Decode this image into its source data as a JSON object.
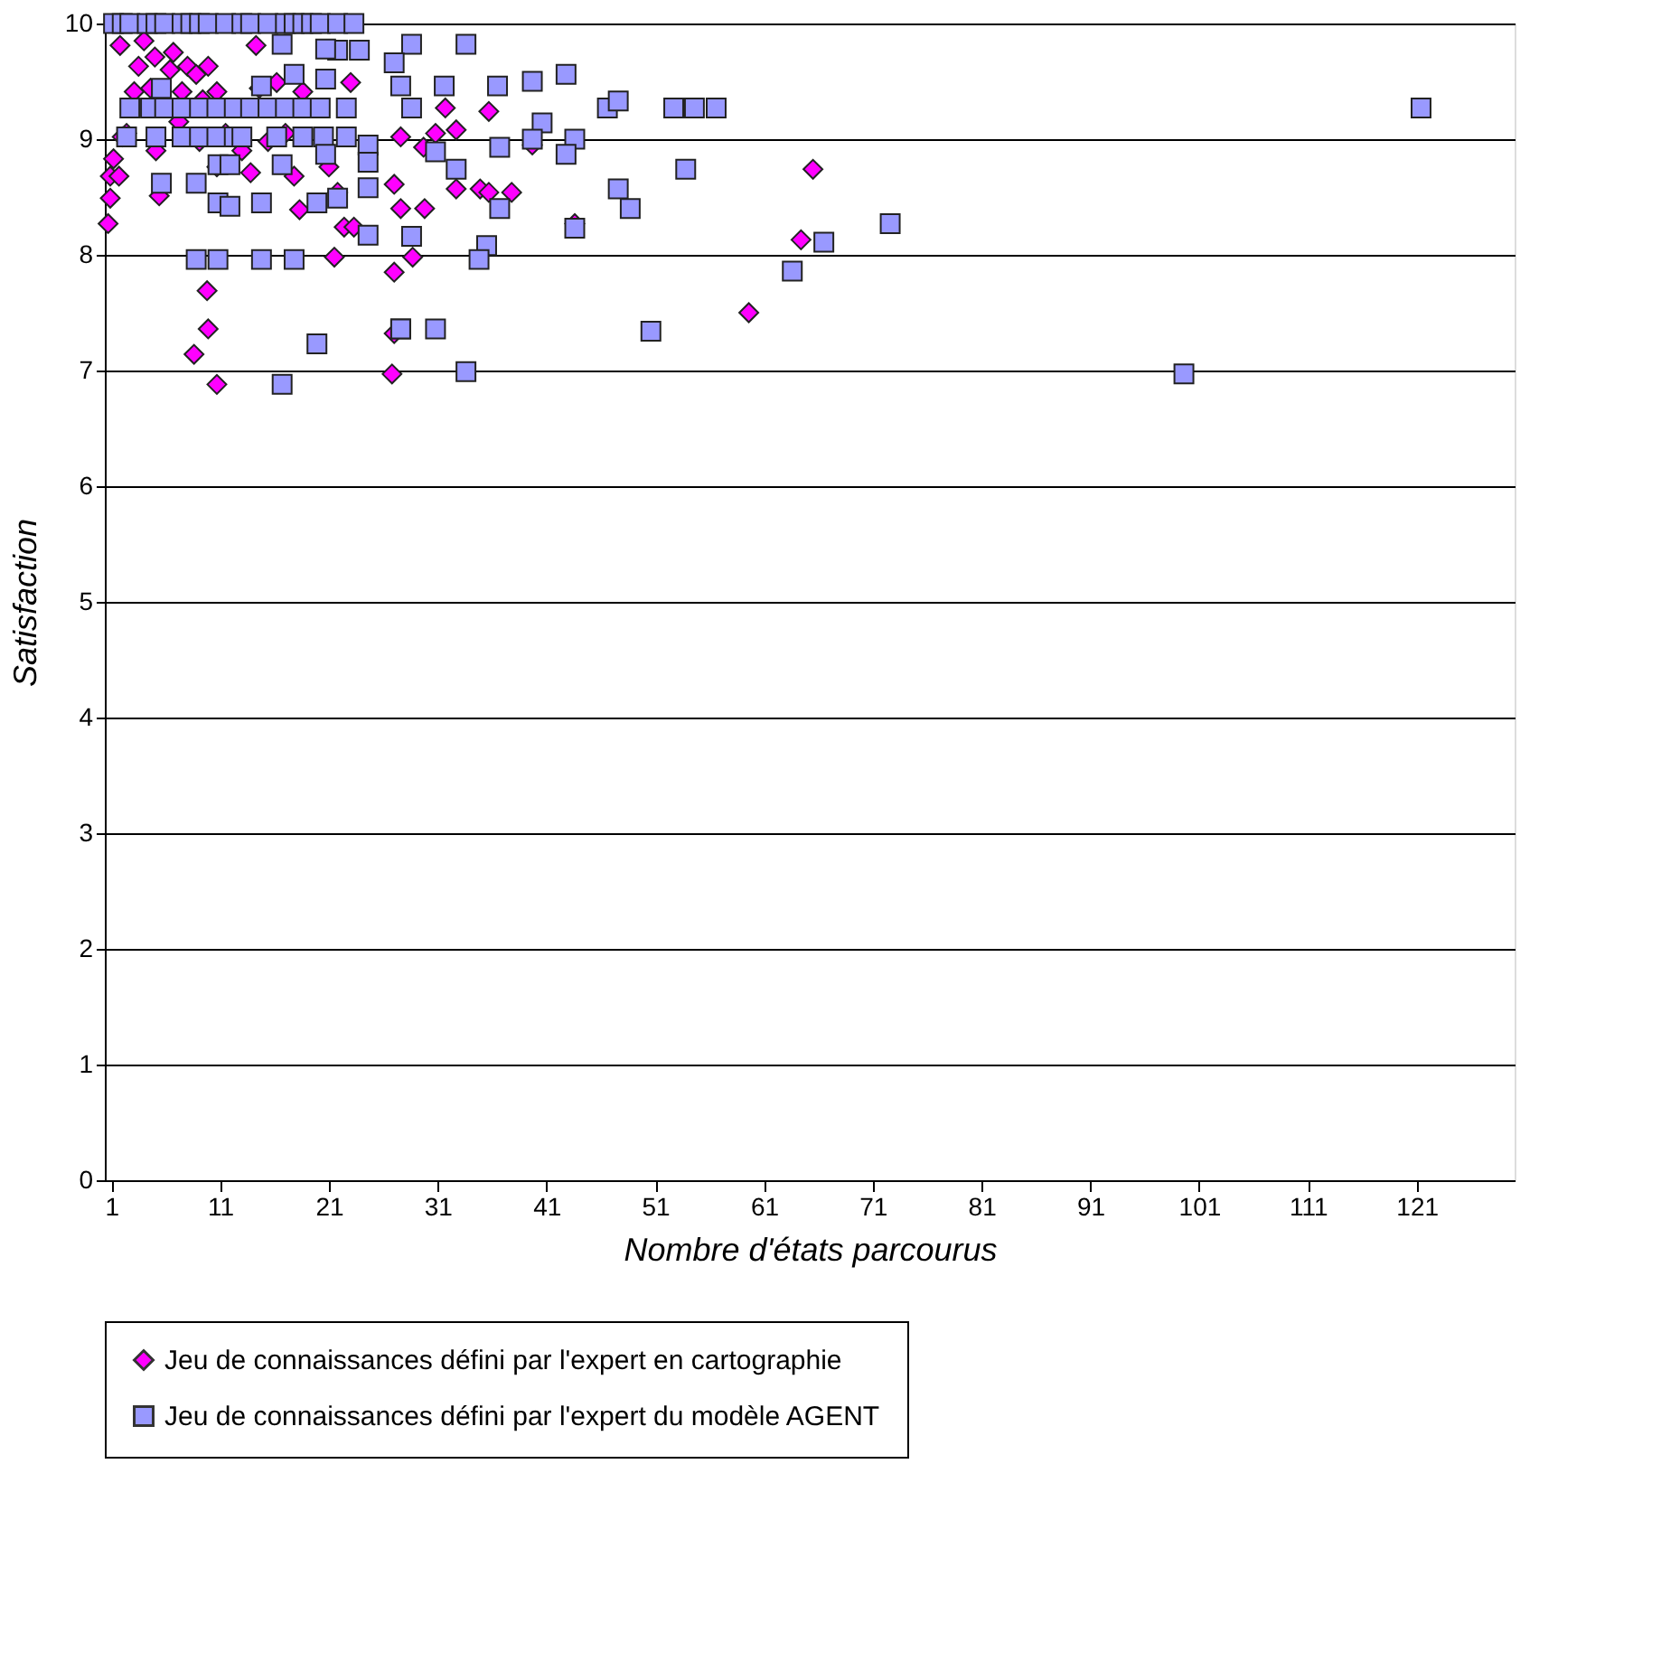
{
  "chart_data": {
    "type": "scatter",
    "xlabel": "Nombre d'états parcourus",
    "ylabel": "Satisfaction",
    "xlim": [
      0.4,
      130
    ],
    "xticks": [
      1,
      11,
      21,
      31,
      41,
      51,
      61,
      71,
      81,
      91,
      101,
      111,
      121
    ],
    "ylim": [
      0,
      10
    ],
    "yticks": [
      0,
      1,
      2,
      3,
      4,
      5,
      6,
      7,
      8,
      9,
      10
    ],
    "grid": "y",
    "legend": "bottom",
    "series": [
      {
        "name": "Jeu de connaissances défini par l'expert en cartographie",
        "color": "#ff00ff",
        "marker": "diamond",
        "x": [
          0.7,
          0.9,
          0.9,
          1.2,
          1.7,
          2.0,
          1.8,
          2.4,
          2.7,
          3.1,
          3.5,
          4.0,
          4.6,
          5.0,
          5.1,
          5.4,
          5.9,
          6.4,
          6.7,
          7.2,
          7.5,
          8.0,
          8.3,
          8.8,
          9.1,
          9.4,
          9.9,
          10.4,
          10.7,
          10.7,
          11.5,
          11.2,
          8.6,
          9.9,
          9.8,
          10.7,
          13.0,
          13.8,
          14.3,
          14.6,
          15.1,
          15.4,
          16.2,
          17.0,
          17.8,
          18.3,
          18.6,
          19.1,
          20.2,
          21.0,
          21.8,
          22.4,
          23.3,
          23.0,
          21.5,
          26.8,
          27.0,
          27.6,
          29.7,
          32.7,
          34.9,
          35.7,
          37.8,
          29.8,
          27.6,
          27.0,
          28.7,
          27.0,
          31.7,
          35.7,
          32.7,
          30.8,
          39.7,
          43.6,
          59.6,
          64.4,
          65.5
        ],
        "values": [
          8.27,
          8.49,
          8.68,
          8.83,
          8.68,
          9.02,
          9.81,
          9.05,
          null,
          9.41,
          9.63,
          9.85,
          9.44,
          9.71,
          8.9,
          8.51,
          null,
          9.6,
          9.75,
          9.15,
          9.41,
          9.63,
          null,
          9.56,
          8.98,
          9.34,
          9.63,
          null,
          9.41,
          8.76,
          9.05,
          null,
          7.14,
          7.36,
          7.69,
          6.88,
          8.9,
          8.71,
          9.81,
          9.44,
          null,
          8.98,
          9.49,
          9.05,
          8.68,
          8.39,
          9.41,
          null,
          null,
          8.76,
          8.54,
          8.24,
          8.24,
          9.49,
          7.98,
          6.97,
          7.32,
          9.02,
          8.93,
          8.57,
          8.57,
          8.54,
          8.54,
          8.4,
          8.4,
          8.61,
          7.98,
          7.85,
          9.27,
          9.24,
          9.08,
          9.05,
          8.95,
          8.27,
          7.5,
          8.13,
          8.74
        ]
      },
      {
        "name": "Jeu de connaissances défini par l'expert du modèle AGENT",
        "color": "#9999ff",
        "marker": "square",
        "x": [
          1.2,
          2.0,
          2.7,
          4.3,
          5.1,
          5.9,
          7.5,
          8.3,
          9.1,
          9.9,
          11.5,
          13.0,
          13.8,
          15.4,
          17.0,
          17.8,
          18.6,
          19.4,
          20.2,
          21.8,
          23.3,
          2.7,
          4.6,
          5.9,
          7.5,
          9.1,
          10.7,
          12.3,
          13.8,
          15.4,
          17.0,
          18.6,
          20.2,
          22.6,
          2.4,
          5.1,
          7.5,
          9.1,
          10.7,
          12.3,
          13.0,
          16.2,
          18.6,
          20.5,
          22.6,
          16.7,
          21.8,
          23.8,
          20.7,
          5.6,
          14.8,
          17.8,
          20.7,
          24.6,
          24.6,
          20.7,
          10.8,
          11.9,
          16.7,
          5.6,
          8.8,
          10.8,
          11.9,
          14.8,
          19.9,
          21.8,
          24.6,
          24.6,
          8.8,
          10.8,
          14.8,
          17.8,
          19.9,
          16.7,
          27.6,
          28.6,
          33.6,
          27.0,
          27.6,
          31.6,
          36.5,
          39.7,
          42.8,
          28.6,
          46.6,
          47.6,
          52.7,
          54.6,
          56.6,
          40.6,
          39.7,
          43.6,
          36.7,
          42.8,
          30.8,
          32.7,
          53.8,
          47.6,
          48.7,
          36.7,
          43.6,
          28.6,
          35.5,
          34.8,
          63.6,
          27.6,
          30.8,
          50.6,
          33.6,
          121.4,
          72.6,
          66.5,
          99.6
        ],
        "values": [
          10.0,
          10.0,
          10.0,
          10.0,
          10.0,
          10.0,
          10.0,
          10.0,
          10.0,
          10.0,
          10.0,
          10.0,
          10.0,
          10.0,
          10.0,
          10.0,
          10.0,
          10.0,
          10.0,
          10.0,
          10.0,
          9.27,
          9.27,
          9.27,
          9.27,
          9.27,
          9.27,
          9.27,
          9.27,
          9.27,
          9.27,
          9.27,
          9.27,
          9.27,
          9.02,
          9.02,
          9.02,
          9.02,
          9.02,
          9.02,
          9.02,
          9.02,
          9.02,
          9.02,
          9.02,
          9.82,
          9.77,
          9.77,
          9.78,
          9.44,
          9.46,
          9.56,
          9.52,
          8.95,
          8.8,
          8.87,
          8.78,
          8.78,
          8.78,
          8.62,
          8.62,
          8.45,
          8.42,
          8.45,
          8.45,
          8.49,
          8.58,
          8.17,
          7.96,
          7.96,
          7.96,
          7.96,
          7.23,
          6.88,
          7.36,
          9.82,
          9.82,
          9.66,
          9.46,
          9.46,
          9.46,
          9.5,
          9.56,
          9.27,
          9.27,
          9.33,
          9.27,
          9.27,
          9.27,
          9.14,
          9.0,
          9.0,
          8.93,
          8.87,
          8.89,
          8.74,
          8.74,
          8.57,
          8.4,
          8.4,
          8.23,
          8.16,
          8.08,
          7.96,
          7.86,
          7.36,
          7.36,
          7.34,
          6.99,
          9.27,
          8.27,
          8.11,
          6.97
        ]
      }
    ]
  }
}
